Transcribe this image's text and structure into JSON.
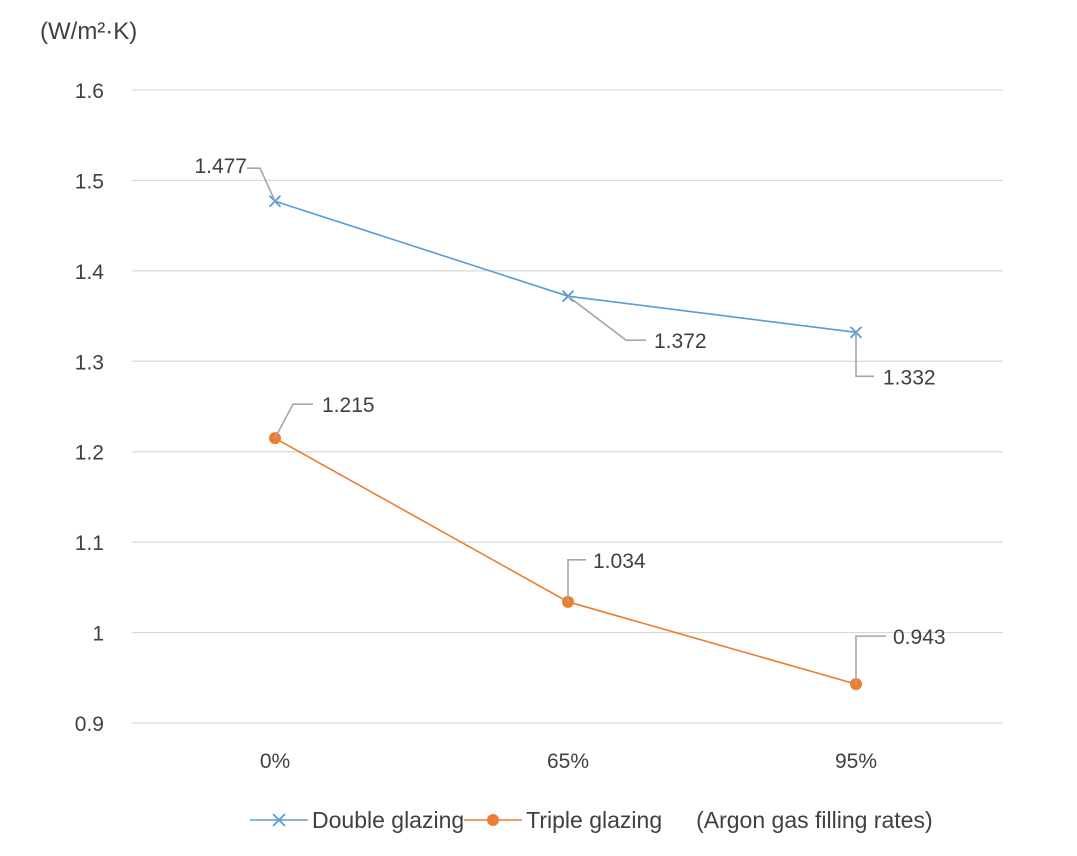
{
  "unit_label": "(W/m²·K)",
  "legend_note": "(Argon gas filling rates)",
  "chart_data": {
    "type": "line",
    "title": "",
    "ylabel": "(W/m²·K)",
    "xlabel": "(Argon gas filling rates)",
    "categories": [
      "0%",
      "65%",
      "95%"
    ],
    "ylim": [
      0.9,
      1.6
    ],
    "yticks": [
      0.9,
      1,
      1.1,
      1.2,
      1.3,
      1.4,
      1.5,
      1.6
    ],
    "ytick_labels": [
      "0.9",
      "1",
      "1.1",
      "1.2",
      "1.3",
      "1.4",
      "1.5",
      "1.6"
    ],
    "grid": true,
    "legend_position": "bottom",
    "series": [
      {
        "name": "Double glazing",
        "values": [
          1.477,
          1.372,
          1.332
        ],
        "labels": [
          "1.477",
          "1.372",
          "1.332"
        ],
        "color": "#5b9bd5",
        "marker": "x"
      },
      {
        "name": "Triple glazing",
        "values": [
          1.215,
          1.034,
          0.943
        ],
        "labels": [
          "1.215",
          "1.034",
          "0.943"
        ],
        "color": "#ed7d31",
        "marker": "circle"
      }
    ]
  }
}
